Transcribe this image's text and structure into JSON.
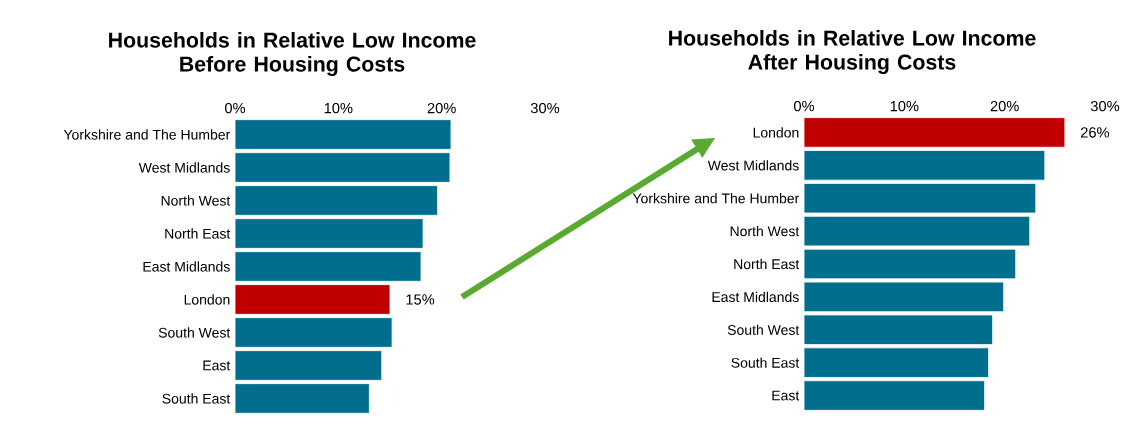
{
  "chart_data": [
    {
      "type": "bar",
      "orientation": "horizontal",
      "title": "Households in Relative Low Income\nBefore Housing Costs",
      "categories": [
        "Yorkshire and The Humber",
        "West Midlands",
        "North West",
        "North East",
        "East Midlands",
        "London",
        "South West",
        "East",
        "South East"
      ],
      "values": [
        20.9,
        20.8,
        19.6,
        18.2,
        18.0,
        15,
        15.2,
        14.2,
        13.0
      ],
      "colors": [
        "#006e8c",
        "#006e8c",
        "#006e8c",
        "#006e8c",
        "#006e8c",
        "#c00000",
        "#006e8c",
        "#006e8c",
        "#006e8c"
      ],
      "value_labels": [
        null,
        null,
        null,
        null,
        null,
        "15%",
        null,
        null,
        null
      ],
      "xlim": [
        0,
        30
      ],
      "xticks": [
        {
          "value": 0,
          "label": "0%"
        },
        {
          "value": 10,
          "label": "10%"
        },
        {
          "value": 20,
          "label": "20%"
        },
        {
          "value": 30,
          "label": "30%"
        }
      ]
    },
    {
      "type": "bar",
      "orientation": "horizontal",
      "title": "Households in Relative Low Income\nAfter Housing Costs",
      "categories": [
        "London",
        "West Midlands",
        "Yorkshire and The Humber",
        "North West",
        "North East",
        "East Midlands",
        "South West",
        "South East",
        "East"
      ],
      "values": [
        26,
        24.0,
        23.1,
        22.5,
        21.1,
        19.9,
        18.8,
        18.4,
        18.0
      ],
      "colors": [
        "#c00000",
        "#006e8c",
        "#006e8c",
        "#006e8c",
        "#006e8c",
        "#006e8c",
        "#006e8c",
        "#006e8c",
        "#006e8c"
      ],
      "value_labels": [
        "26%",
        null,
        null,
        null,
        null,
        null,
        null,
        null,
        null
      ],
      "xlim": [
        0,
        30
      ],
      "xticks": [
        {
          "value": 0,
          "label": "0%"
        },
        {
          "value": 10,
          "label": "10%"
        },
        {
          "value": 20,
          "label": "20%"
        },
        {
          "value": 30,
          "label": "30%"
        }
      ]
    }
  ]
}
